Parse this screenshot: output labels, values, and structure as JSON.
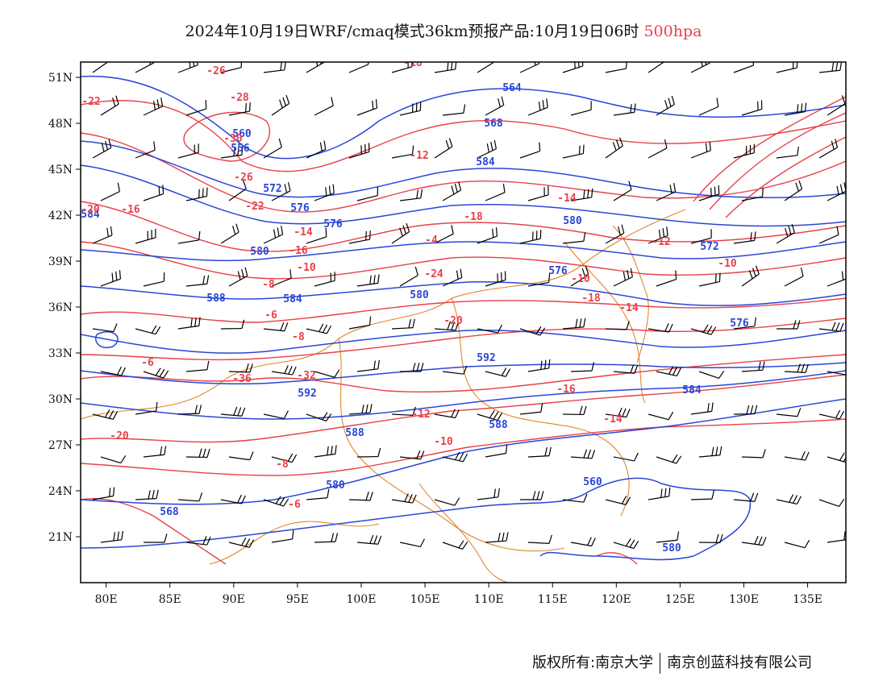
{
  "title": {
    "main": "2024年10月19日WRF/cmaq模式36km预报产品:10月19日06时",
    "level": "500hpa"
  },
  "footer": {
    "copyright": "版权所有:南京大学",
    "company": "南京创蓝科技有限公司"
  },
  "colors": {
    "height_contour": "#2a46d6",
    "temp_contour": "#e8414a",
    "boundary": "#e0862a",
    "wind_barb": "#000000",
    "frame": "#000000"
  },
  "map": {
    "lon_range": [
      78,
      138
    ],
    "lat_range": [
      18,
      52
    ],
    "lon_ticks": [
      "80E",
      "85E",
      "90E",
      "95E",
      "100E",
      "105E",
      "110E",
      "115E",
      "120E",
      "125E",
      "130E",
      "135E"
    ],
    "lat_ticks": [
      "21N",
      "24N",
      "27N",
      "30N",
      "33N",
      "36N",
      "39N",
      "42N",
      "45N",
      "48N",
      "51N"
    ],
    "height_labels": [
      "584",
      "560",
      "556",
      "564",
      "568",
      "572",
      "576",
      "576",
      "580",
      "584",
      "580",
      "588",
      "584",
      "580",
      "576",
      "572",
      "588",
      "592",
      "592",
      "588",
      "580",
      "568",
      "560",
      "580",
      "584",
      "576"
    ],
    "temp_labels": [
      "-26",
      "-28",
      "-30",
      "-22",
      "-26",
      "-22",
      "-20",
      "-18",
      "-16",
      "-14",
      "-12",
      "-10",
      "-8",
      "-6",
      "-4",
      "-18",
      "-16",
      "-14",
      "-12",
      "-10",
      "-8",
      "-6",
      "-36",
      "-32",
      "-24",
      "-20",
      "-18",
      "-14",
      "-10",
      "-16",
      "-14",
      "-12",
      "-10",
      "-8",
      "-6",
      "-20"
    ]
  }
}
